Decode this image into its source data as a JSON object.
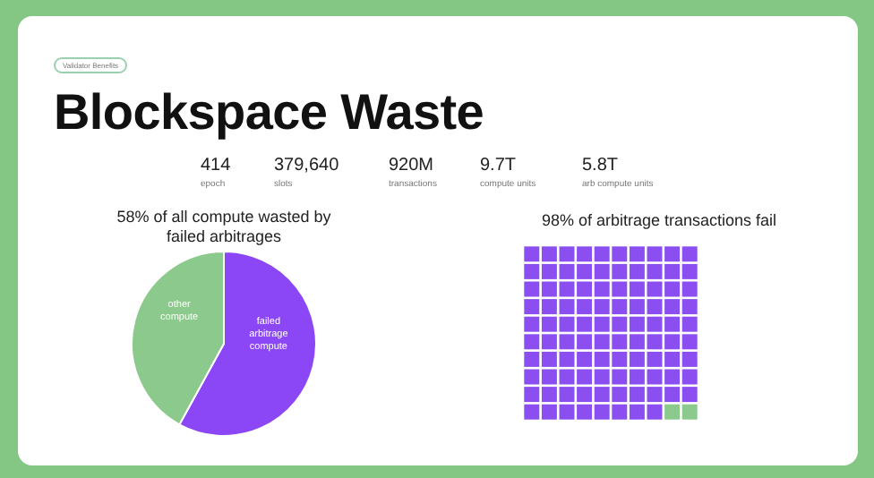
{
  "chart_data": [
    {
      "type": "other",
      "title": "Blockspace Waste",
      "subtitle": "Validator Benefits",
      "categories": [
        "epoch",
        "slots",
        "transactions",
        "compute units",
        "arb compute units"
      ],
      "value_labels": [
        "414",
        "379,640",
        "920M",
        "9.7T",
        "5.8T"
      ]
    },
    {
      "type": "pie",
      "title": "58% of all compute wasted by failed arbitrages",
      "categories": [
        "failed arbitrage compute",
        "other compute"
      ],
      "values": [
        58,
        42
      ],
      "colors": [
        "#8b46f5",
        "#8cc98c"
      ]
    },
    {
      "type": "other",
      "title": "of arbitrage transactions fail",
      "values": [
        98
      ],
      "value_labels": [
        "98%"
      ],
      "color": "#8b4ef0"
    }
  ]
}
